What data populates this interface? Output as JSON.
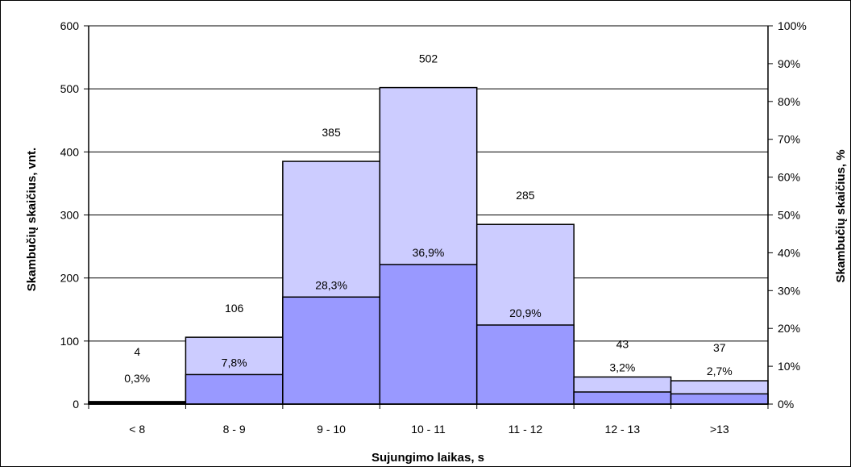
{
  "chart_data": {
    "type": "bar",
    "xlabel": "Sujungimo laikas, s",
    "ylabel": "Skambučių skaičius, vnt.",
    "y2label": "Skambučių skaičius, %",
    "categories": [
      "< 8",
      "8 - 9",
      "9 - 10",
      "10 - 11",
      "11 - 12",
      "12 - 13",
      ">13"
    ],
    "series": [
      {
        "values": [
          4,
          106,
          385,
          502,
          285,
          43,
          37
        ],
        "labels": [
          "4",
          "106",
          "385",
          "502",
          "285",
          "43",
          "37"
        ]
      },
      {
        "values": [
          0.3,
          7.8,
          28.3,
          36.9,
          20.9,
          3.2,
          2.7
        ],
        "labels": [
          "0,3%",
          "7,8%",
          "28,3%",
          "36,9%",
          "20,9%",
          "3,2%",
          "2,7%"
        ]
      }
    ],
    "ylim": [
      0,
      600
    ],
    "yticks": [
      "0",
      "100",
      "200",
      "300",
      "400",
      "500",
      "600"
    ],
    "y2lim": [
      0,
      100
    ],
    "y2ticks": [
      "0%",
      "10%",
      "20%",
      "30%",
      "40%",
      "50%",
      "60%",
      "70%",
      "80%",
      "90%",
      "100%"
    ],
    "grid": true,
    "colors": {
      "count_fill": "#ccccff",
      "percent_fill": "#9999ff",
      "first_bar_fill": "#000000",
      "edge": "#000000"
    }
  }
}
